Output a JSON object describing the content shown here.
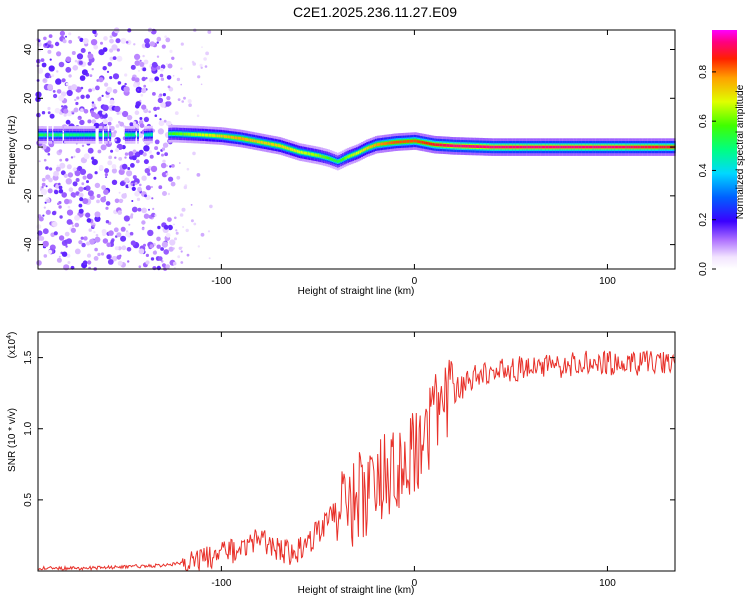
{
  "title": "C2E1.2025.236.11.27.E09",
  "chart_data": [
    {
      "type": "heatmap",
      "xlabel": "Height of straight line (km)",
      "ylabel": "Frequency (Hz)",
      "xlim": [
        -195,
        135
      ],
      "ylim": [
        -50,
        48
      ],
      "xticks": [
        -100,
        0,
        100
      ],
      "yticks": [
        -40,
        -20,
        0,
        20,
        40
      ],
      "colorbar": {
        "label": "Normalized spectral amplitude",
        "range": [
          0,
          0.97
        ],
        "ticks": [
          0.0,
          0.2,
          0.4,
          0.6,
          0.8
        ]
      },
      "ridge": {
        "x": [
          -195,
          -170,
          -150,
          -140,
          -125,
          -110,
          -100,
          -90,
          -80,
          -70,
          -60,
          -50,
          -45,
          -40,
          -35,
          -30,
          -25,
          -20,
          -10,
          0,
          10,
          20,
          40,
          60,
          80,
          100,
          135
        ],
        "frequency": [
          5,
          5,
          5,
          5,
          5.5,
          5,
          4.5,
          3.5,
          2,
          0.5,
          -2,
          -3.5,
          -4.5,
          -6,
          -4,
          -2.5,
          -0.5,
          1,
          2,
          2.5,
          1,
          0.5,
          0,
          0,
          0,
          0,
          0
        ],
        "amplitude": [
          0.55,
          0.5,
          0.55,
          0.45,
          0.6,
          0.7,
          0.75,
          0.8,
          0.75,
          0.75,
          0.7,
          0.65,
          0.6,
          0.55,
          0.65,
          0.7,
          0.75,
          0.8,
          0.85,
          0.85,
          0.9,
          0.95,
          0.95,
          0.95,
          0.95,
          0.95,
          0.9
        ]
      }
    },
    {
      "type": "line",
      "xlabel": "Height of straight line (km)",
      "ylabel": "SNR (10 * v/v)",
      "scale_label": "(x10",
      "scale_exp": "4",
      "scale_close": ")",
      "xlim": [
        -195,
        135
      ],
      "ylim": [
        0.0,
        1.68
      ],
      "xticks": [
        -100,
        0,
        100
      ],
      "yticks": [
        0.5,
        1.0,
        1.5
      ],
      "ytick_labels": [
        "0.5",
        "1.0",
        "1.5"
      ],
      "series": [
        {
          "color": "#e8312a",
          "x": [
            -195,
            -170,
            -150,
            -130,
            -120,
            -110,
            -100,
            -90,
            -85,
            -80,
            -75,
            -70,
            -65,
            -60,
            -55,
            -50,
            -45,
            -40,
            -35,
            -30,
            -25,
            -20,
            -15,
            -10,
            -5,
            0,
            5,
            10,
            15,
            20,
            25,
            30,
            40,
            50,
            60,
            70,
            80,
            90,
            100,
            110,
            120,
            135
          ],
          "y": [
            0.02,
            0.02,
            0.03,
            0.04,
            0.06,
            0.08,
            0.12,
            0.16,
            0.2,
            0.22,
            0.2,
            0.15,
            0.12,
            0.15,
            0.2,
            0.28,
            0.35,
            0.42,
            0.45,
            0.5,
            0.55,
            0.62,
            0.65,
            0.7,
            0.75,
            0.8,
            0.9,
            1.05,
            1.15,
            1.25,
            1.3,
            1.35,
            1.4,
            1.42,
            1.43,
            1.44,
            1.45,
            1.46,
            1.46,
            1.46,
            1.46,
            1.46
          ]
        }
      ]
    }
  ]
}
